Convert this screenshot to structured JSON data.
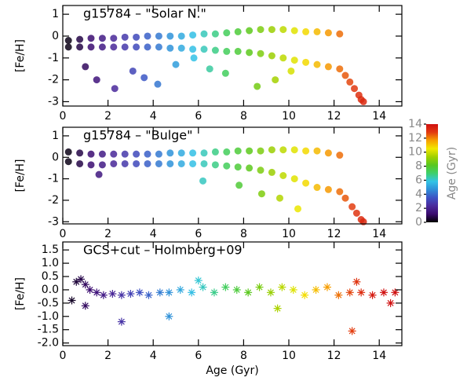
{
  "chart_data": [
    {
      "type": "scatter",
      "title": "g15784 – \"Solar N.\"",
      "y_label": "[Fe/H]",
      "marker": "dot",
      "xlim": [
        0,
        15
      ],
      "xticks": [
        0,
        2,
        4,
        6,
        8,
        10,
        12,
        14
      ],
      "ylim": [
        -3.2,
        1.4
      ],
      "yticks": [
        -3,
        -2,
        -1,
        0,
        1
      ],
      "x": [
        0.25,
        0.75,
        1.25,
        1.75,
        2.25,
        2.75,
        3.25,
        3.75,
        4.25,
        4.75,
        5.25,
        5.75,
        6.25,
        6.75,
        7.25,
        7.75,
        8.25,
        8.75,
        9.25,
        9.75,
        10.25,
        10.75,
        11.25,
        11.75,
        12.25,
        0.25,
        0.75,
        1.25,
        1.75,
        2.25,
        2.75,
        3.25,
        3.75,
        4.25,
        4.75,
        5.25,
        5.75,
        6.25,
        6.75,
        7.25,
        7.75,
        8.25,
        8.75,
        9.25,
        9.75,
        10.25,
        10.75,
        11.25,
        11.75,
        12.25,
        12.5,
        12.7,
        12.9,
        13.1,
        13.2,
        13.3,
        1.5,
        2.3,
        3.1,
        4.2,
        5.0,
        5.8,
        6.5,
        7.2,
        8.6,
        9.4,
        10.1,
        1.0,
        3.6
      ],
      "values": [
        -0.2,
        -0.15,
        -0.1,
        -0.1,
        -0.1,
        -0.05,
        -0.05,
        0,
        0,
        0,
        0,
        0.05,
        0.1,
        0.1,
        0.15,
        0.2,
        0.25,
        0.3,
        0.3,
        0.3,
        0.25,
        0.2,
        0.2,
        0.15,
        0.1,
        -0.5,
        -0.5,
        -0.5,
        -0.5,
        -0.5,
        -0.5,
        -0.5,
        -0.5,
        -0.5,
        -0.55,
        -0.55,
        -0.6,
        -0.6,
        -0.65,
        -0.7,
        -0.7,
        -0.75,
        -0.8,
        -0.9,
        -1,
        -1.1,
        -1.2,
        -1.3,
        -1.4,
        -1.5,
        -1.8,
        -2.1,
        -2.4,
        -2.7,
        -2.9,
        -3.0,
        -2.0,
        -2.4,
        -1.6,
        -2.2,
        -1.3,
        -1.0,
        -1.5,
        -1.7,
        -2.3,
        -2.0,
        -1.6,
        -1.4,
        -1.9
      ]
    },
    {
      "type": "scatter",
      "title": "g15784 – \"Bulge\"",
      "y_label": "[Fe/H]",
      "marker": "dot",
      "xlim": [
        0,
        15
      ],
      "xticks": [
        0,
        2,
        4,
        6,
        8,
        10,
        12,
        14
      ],
      "ylim": [
        -3.1,
        1.4
      ],
      "yticks": [
        -3,
        -2,
        -1,
        0,
        1
      ],
      "x": [
        0.25,
        0.75,
        1.25,
        1.75,
        2.25,
        2.75,
        3.25,
        3.75,
        4.25,
        4.75,
        5.25,
        5.75,
        6.25,
        6.75,
        7.25,
        7.75,
        8.25,
        8.75,
        9.25,
        9.75,
        10.25,
        10.75,
        11.25,
        11.75,
        12.25,
        0.25,
        0.75,
        1.25,
        1.75,
        2.25,
        2.75,
        3.25,
        3.75,
        4.25,
        4.75,
        5.25,
        5.75,
        6.25,
        6.75,
        7.25,
        7.75,
        8.25,
        8.75,
        9.25,
        9.75,
        10.25,
        10.75,
        11.25,
        11.75,
        12.25,
        12.5,
        12.8,
        13.0,
        13.2,
        13.3,
        1.6,
        6.2,
        8.8,
        9.6,
        10.4,
        7.8
      ],
      "values": [
        0.25,
        0.2,
        0.15,
        0.15,
        0.15,
        0.15,
        0.15,
        0.15,
        0.15,
        0.2,
        0.2,
        0.2,
        0.2,
        0.25,
        0.25,
        0.3,
        0.3,
        0.3,
        0.35,
        0.35,
        0.35,
        0.3,
        0.3,
        0.2,
        0.1,
        -0.2,
        -0.3,
        -0.35,
        -0.35,
        -0.3,
        -0.3,
        -0.3,
        -0.3,
        -0.3,
        -0.3,
        -0.3,
        -0.3,
        -0.3,
        -0.35,
        -0.4,
        -0.45,
        -0.5,
        -0.6,
        -0.7,
        -0.85,
        -1.0,
        -1.2,
        -1.4,
        -1.5,
        -1.6,
        -1.9,
        -2.3,
        -2.6,
        -2.9,
        -3.0,
        -0.8,
        -1.1,
        -1.7,
        -1.9,
        -2.4,
        -1.3
      ]
    },
    {
      "type": "scatter",
      "title": "GCS+cut – Holmberg+09",
      "y_label": "[Fe/H]",
      "x_label": "Age (Gyr)",
      "marker": "asterisk",
      "xlim": [
        0,
        15
      ],
      "xticks": [
        0,
        2,
        4,
        6,
        8,
        10,
        12,
        14
      ],
      "ylim": [
        -2.1,
        1.8
      ],
      "yticks": [
        {
          "value": -2.0,
          "label": "-2.0"
        },
        -1.5,
        {
          "value": -1.0,
          "label": "-1.0"
        },
        -0.5,
        {
          "value": 0.0,
          "label": "0.0"
        },
        0.5,
        {
          "value": 1.0,
          "label": "1.0"
        },
        1.5
      ],
      "x": [
        0.4,
        0.6,
        0.8,
        1,
        1.2,
        1.5,
        1.8,
        2.2,
        2.6,
        3,
        3.4,
        3.8,
        4.3,
        4.7,
        5.2,
        5.7,
        6.2,
        6.7,
        7.2,
        7.7,
        8.2,
        8.7,
        9.2,
        9.7,
        10.2,
        10.7,
        11.2,
        11.7,
        12.2,
        12.7,
        13.2,
        13.7,
        14.2,
        14.7,
        2.6,
        4.7,
        12.8,
        1.0,
        6.0,
        9.5,
        13.0,
        14.5
      ],
      "values": [
        -0.4,
        0.3,
        0.4,
        0.2,
        0.0,
        -0.1,
        -0.2,
        -0.15,
        -0.2,
        -0.15,
        -0.1,
        -0.2,
        -0.1,
        -0.1,
        0.0,
        -0.1,
        0.1,
        -0.1,
        0.1,
        0.0,
        -0.1,
        0.1,
        -0.1,
        0.1,
        0.0,
        -0.2,
        0.0,
        0.1,
        -0.2,
        -0.1,
        -0.1,
        -0.2,
        -0.1,
        -0.1,
        -1.2,
        -1.0,
        -1.55,
        -0.6,
        0.35,
        -0.7,
        0.3,
        -0.5
      ]
    },
    {
      "type": "colorbar",
      "label": "Age (Gyr)",
      "ylim": [
        0,
        14
      ],
      "yticks": [
        0,
        2,
        4,
        6,
        8,
        10,
        12,
        14
      ],
      "colors": [
        "#000000",
        "#3a0a6e",
        "#4a2a9c",
        "#3d52c4",
        "#2f8fd8",
        "#33c4e6",
        "#3dcf6a",
        "#58c81f",
        "#a0d000",
        "#f2e800",
        "#f7a000",
        "#e23a10",
        "#d01010"
      ]
    }
  ]
}
